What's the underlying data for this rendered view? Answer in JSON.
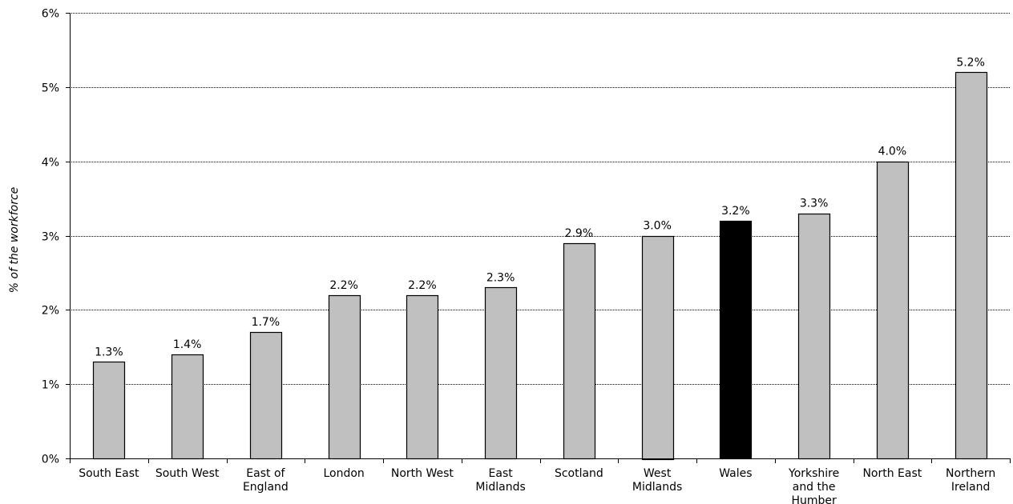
{
  "chart_data": {
    "type": "bar",
    "title": "",
    "xlabel": "",
    "ylabel": "% of the workforce",
    "ylim": [
      0,
      6
    ],
    "yticks": [
      0,
      1,
      2,
      3,
      4,
      5,
      6
    ],
    "ytick_labels": [
      "0%",
      "1%",
      "2%",
      "3%",
      "4%",
      "5%",
      "6%"
    ],
    "grid": true,
    "categories": [
      "South East",
      "South West",
      "East of England",
      "London",
      "North West",
      "East Midlands",
      "Scotland",
      "West Midlands",
      "Wales",
      "Yorkshire and the Humber",
      "North East",
      "Northern Ireland"
    ],
    "category_label_lines": [
      [
        "South East"
      ],
      [
        "South West"
      ],
      [
        "East of",
        "England"
      ],
      [
        "London"
      ],
      [
        "North West"
      ],
      [
        "East",
        "Midlands"
      ],
      [
        "Scotland"
      ],
      [
        "West",
        "Midlands"
      ],
      [
        "Wales"
      ],
      [
        "Yorkshire",
        "and the",
        "Humber"
      ],
      [
        "North East"
      ],
      [
        "Northern",
        "Ireland"
      ]
    ],
    "values": [
      1.3,
      1.4,
      1.7,
      2.2,
      2.2,
      2.3,
      2.9,
      3.0,
      3.2,
      3.3,
      4.0,
      5.2
    ],
    "data_labels": [
      "1.3%",
      "1.4%",
      "1.7%",
      "2.2%",
      "2.2%",
      "2.3%",
      "2.9%",
      "3.0%",
      "3.2%",
      "3.3%",
      "4.0%",
      "5.2%"
    ],
    "highlight_category": "Wales",
    "colors": {
      "bar": "#c0c0c0",
      "highlight": "#000000",
      "bar_stroke": "#000000",
      "grid": "#000000"
    }
  }
}
